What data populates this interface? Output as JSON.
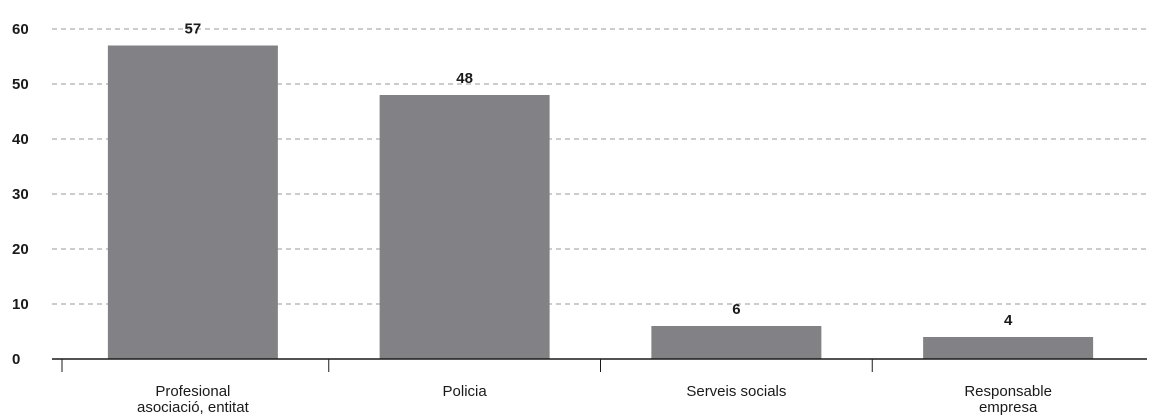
{
  "chart_data": {
    "type": "bar",
    "categories": [
      [
        "Profesional",
        "asociació, entitat"
      ],
      [
        "Policia"
      ],
      [
        "Serveis socials"
      ],
      [
        "Responsable",
        "empresa"
      ]
    ],
    "values": [
      57,
      48,
      6,
      4
    ],
    "data_labels": [
      "57",
      "48",
      "6",
      "4"
    ],
    "ylim": [
      0,
      60
    ],
    "yticks": [
      0,
      10,
      20,
      30,
      40,
      50,
      60
    ],
    "grid": true,
    "title": "",
    "xlabel": "",
    "ylabel": "",
    "colors": {
      "bar": "#828286",
      "grid": "#9a9a9a",
      "axis": "#1a1a1a",
      "text": "#1a1a1a"
    }
  }
}
